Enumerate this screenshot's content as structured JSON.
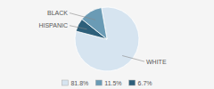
{
  "chart_data": {
    "type": "pie",
    "categories": [
      "WHITE",
      "HISPANIC",
      "BLACK"
    ],
    "values": [
      81.8,
      6.7,
      11.5
    ],
    "value_labels": [
      "81.8%",
      "6.7%",
      "11.5%"
    ],
    "colors": [
      "#d6e4f0",
      "#2d5f7a",
      "#6a9bb5"
    ],
    "legend": "bottom"
  }
}
